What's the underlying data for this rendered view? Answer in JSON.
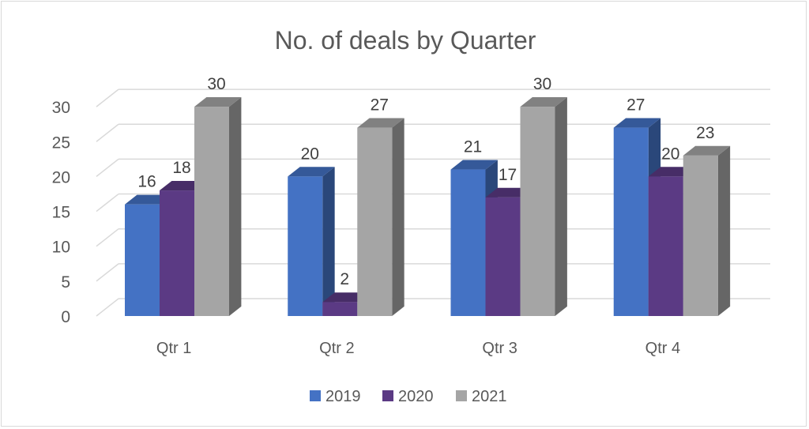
{
  "chart_data": {
    "type": "bar",
    "title": "No. of deals by Quarter",
    "xlabel": "",
    "ylabel": "",
    "categories": [
      "Qtr 1",
      "Qtr 2",
      "Qtr 3",
      "Qtr 4"
    ],
    "series": [
      {
        "name": "2019",
        "values": [
          16,
          20,
          21,
          27
        ],
        "color": "#4472c4"
      },
      {
        "name": "2020",
        "values": [
          18,
          2,
          17,
          20
        ],
        "color": "#5b3a84"
      },
      {
        "name": "2021",
        "values": [
          30,
          27,
          30,
          23
        ],
        "color": "#a5a5a5"
      }
    ],
    "ylim": [
      0,
      30
    ],
    "yticks": [
      0,
      5,
      10,
      15,
      20,
      25,
      30
    ],
    "grid": true,
    "legend_position": "bottom",
    "data_labels": true,
    "style": "3d-clustered-column"
  }
}
